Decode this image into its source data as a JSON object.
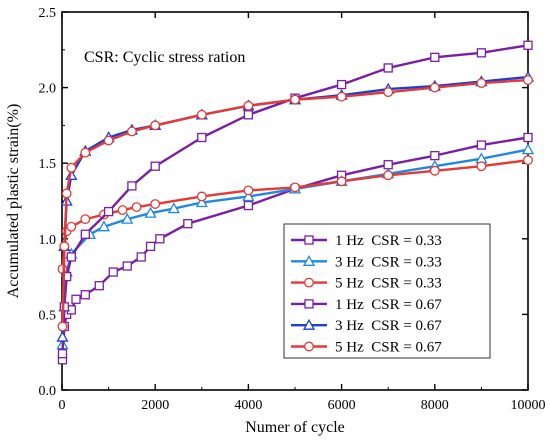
{
  "chart_data": {
    "type": "line",
    "xlabel": "Numer of cycle",
    "ylabel": "Accumulated plastic strain(%)",
    "xlim": [
      0,
      10000
    ],
    "ylim": [
      0.0,
      2.5
    ],
    "xticks": [
      "0",
      "2000",
      "4000",
      "6000",
      "8000",
      "10000"
    ],
    "yticks": [
      "0.0",
      "0.5",
      "1.0",
      "1.5",
      "2.0",
      "2.5"
    ],
    "annotation": "CSR: Cyclic stress ration",
    "grid": false,
    "legend_position": "bottom-right",
    "series": [
      {
        "name": "1 Hz  CSR = 0.33",
        "color": "#7b1fa2",
        "marker": "square",
        "x": [
          10,
          50,
          100,
          200,
          300,
          500,
          800,
          1100,
          1400,
          1700,
          1900,
          2100,
          2700,
          4000,
          5000,
          6000,
          7000,
          8000,
          9000,
          10000
        ],
        "y": [
          0.2,
          0.42,
          0.5,
          0.53,
          0.6,
          0.63,
          0.69,
          0.78,
          0.82,
          0.88,
          0.95,
          1.0,
          1.1,
          1.22,
          1.33,
          1.42,
          1.49,
          1.55,
          1.62,
          1.67
        ]
      },
      {
        "name": "3 Hz  CSR = 0.33",
        "color": "#1e88e5",
        "marker": "triangle",
        "x": [
          10,
          50,
          100,
          200,
          600,
          900,
          1400,
          1900,
          2400,
          3000,
          4000,
          5000,
          6000,
          7000,
          8000,
          9000,
          10000
        ],
        "y": [
          0.3,
          0.55,
          0.78,
          0.9,
          1.03,
          1.08,
          1.13,
          1.17,
          1.2,
          1.24,
          1.28,
          1.33,
          1.38,
          1.43,
          1.48,
          1.53,
          1.59
        ]
      },
      {
        "name": "5 Hz  CSR = 0.33",
        "color": "#e53935",
        "marker": "circle",
        "x": [
          10,
          50,
          100,
          200,
          500,
          900,
          1300,
          1600,
          2000,
          3000,
          4000,
          5000,
          6000,
          7000,
          8000,
          9000,
          10000
        ],
        "y": [
          0.8,
          0.95,
          1.05,
          1.08,
          1.13,
          1.16,
          1.19,
          1.21,
          1.23,
          1.28,
          1.32,
          1.34,
          1.38,
          1.42,
          1.45,
          1.48,
          1.52
        ]
      },
      {
        "name": "1 Hz  CSR = 0.67",
        "color": "#7b1fa2",
        "marker": "square",
        "x": [
          10,
          50,
          100,
          200,
          500,
          1000,
          1500,
          2000,
          3000,
          4000,
          5000,
          6000,
          7000,
          8000,
          9000,
          10000
        ],
        "y": [
          0.24,
          0.55,
          0.75,
          0.88,
          1.03,
          1.18,
          1.35,
          1.48,
          1.67,
          1.82,
          1.93,
          2.02,
          2.13,
          2.2,
          2.23,
          2.28
        ]
      },
      {
        "name": "3 Hz  CSR = 0.67",
        "color": "#1a3fd4",
        "marker": "triangle",
        "x": [
          10,
          50,
          100,
          200,
          500,
          1000,
          1500,
          2000,
          3000,
          4000,
          5000,
          6000,
          7000,
          8000,
          9000,
          10000
        ],
        "y": [
          0.35,
          0.95,
          1.25,
          1.42,
          1.58,
          1.67,
          1.72,
          1.75,
          1.82,
          1.88,
          1.92,
          1.95,
          1.99,
          2.01,
          2.04,
          2.07
        ]
      },
      {
        "name": "5 Hz  CSR = 0.67",
        "color": "#e53935",
        "marker": "circle",
        "x": [
          10,
          50,
          100,
          200,
          500,
          1000,
          1500,
          2000,
          3000,
          4000,
          5000,
          6000,
          7000,
          8000,
          9000,
          10000
        ],
        "y": [
          0.42,
          0.95,
          1.3,
          1.47,
          1.57,
          1.65,
          1.71,
          1.75,
          1.82,
          1.88,
          1.92,
          1.94,
          1.97,
          2.0,
          2.03,
          2.05
        ]
      }
    ]
  }
}
